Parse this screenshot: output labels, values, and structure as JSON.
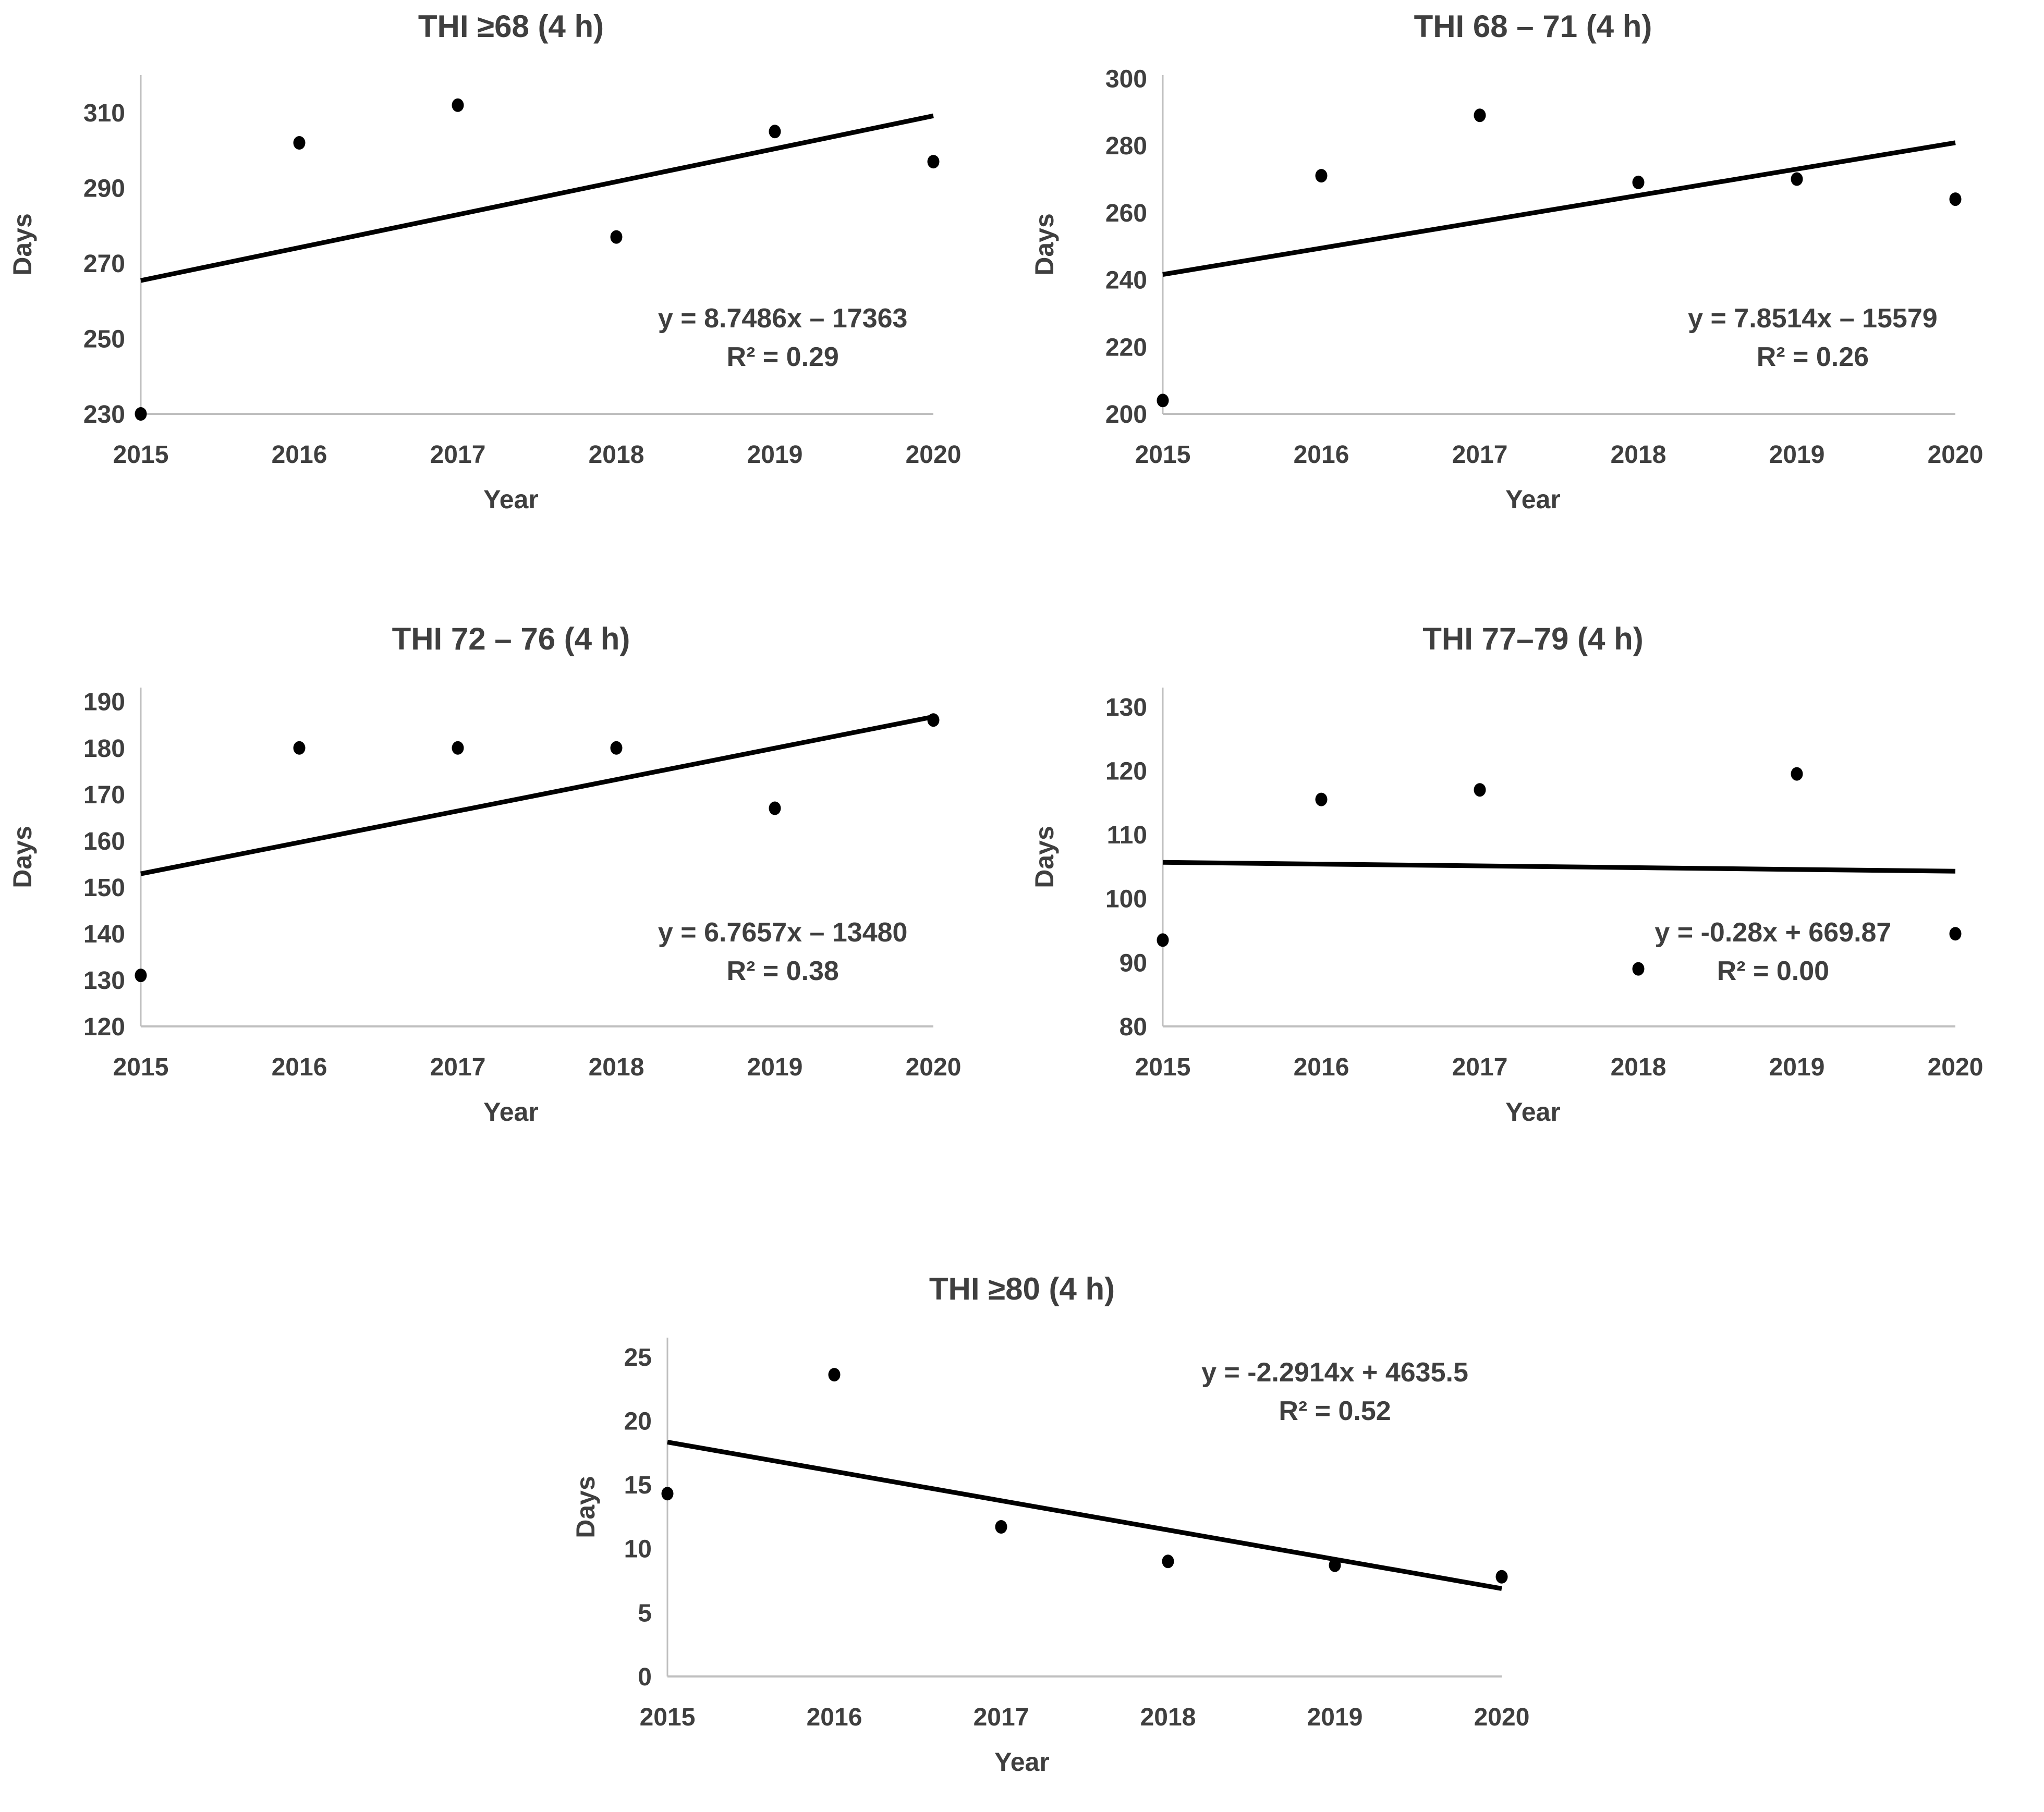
{
  "page": {
    "background": "#ffffff"
  },
  "colors": {
    "text": "#3f3f3f",
    "point": "#000000",
    "trendline": "#000000",
    "axis_line": "#bfbfbf"
  },
  "chart_data": [
    {
      "type": "scatter",
      "title": "THI ≥68 (4 h)",
      "xlabel": "Year",
      "ylabel": "Days",
      "x": [
        2015,
        2016,
        2017,
        2018,
        2019,
        2020
      ],
      "values": [
        230,
        302,
        312,
        277,
        305,
        297
      ],
      "trendline": {
        "slope": 8.7486,
        "intercept": -17363
      },
      "equation": "y = 8.7486x – 17363",
      "r2": "R² = 0.29",
      "ylim": [
        230,
        320
      ],
      "yticks": [
        230,
        250,
        270,
        290,
        310
      ],
      "grid": false,
      "legend": "none"
    },
    {
      "type": "scatter",
      "title": "THI 68 – 71 (4 h)",
      "xlabel": "Year",
      "ylabel": "Days",
      "x": [
        2015,
        2016,
        2017,
        2018,
        2019,
        2020
      ],
      "values": [
        204,
        271,
        289,
        269,
        270,
        264
      ],
      "trendline": {
        "slope": 7.8514,
        "intercept": -15579
      },
      "equation": "y = 7.8514x – 15579",
      "r2": "R² = 0.26",
      "ylim": [
        200,
        301
      ],
      "yticks": [
        200,
        220,
        240,
        260,
        280,
        300
      ],
      "grid": false,
      "legend": "none"
    },
    {
      "type": "scatter",
      "title": "THI 72 – 76 (4 h)",
      "xlabel": "Year",
      "ylabel": "Days",
      "x": [
        2015,
        2016,
        2017,
        2018,
        2019,
        2020
      ],
      "values": [
        131,
        180,
        180,
        180,
        167,
        186
      ],
      "trendline": {
        "slope": 6.7657,
        "intercept": -13480
      },
      "equation": "y = 6.7657x – 13480",
      "r2": "R² = 0.38",
      "ylim": [
        120,
        193
      ],
      "yticks": [
        120,
        130,
        140,
        150,
        160,
        170,
        180,
        190
      ],
      "grid": false,
      "legend": "none"
    },
    {
      "type": "scatter",
      "title": "THI 77–79 (4 h)",
      "xlabel": "Year",
      "ylabel": "Days",
      "x": [
        2015,
        2016,
        2017,
        2018,
        2019,
        2020
      ],
      "values": [
        93.5,
        115.5,
        117,
        89,
        119.5,
        94.5
      ],
      "trendline": {
        "slope": -0.28,
        "intercept": 669.87
      },
      "equation": "y = -0.28x + 669.87",
      "r2": "R² = 0.00",
      "ylim": [
        80,
        133
      ],
      "yticks": [
        80,
        90,
        100,
        110,
        120,
        130
      ],
      "grid": false,
      "legend": "none"
    },
    {
      "type": "scatter",
      "title": "THI ≥80 (4 h)",
      "xlabel": "Year",
      "ylabel": "Days",
      "x": [
        2015,
        2016,
        2017,
        2018,
        2019,
        2020
      ],
      "values": [
        14.3,
        23.6,
        11.7,
        9,
        8.7,
        7.8
      ],
      "trendline": {
        "slope": -2.2914,
        "intercept": 4635.5
      },
      "equation": "y = -2.2914x + 4635.5",
      "r2": "R² = 0.52",
      "ylim": [
        0,
        26.5
      ],
      "yticks": [
        0,
        5,
        10,
        15,
        20,
        25
      ],
      "grid": false,
      "legend": "none"
    }
  ]
}
